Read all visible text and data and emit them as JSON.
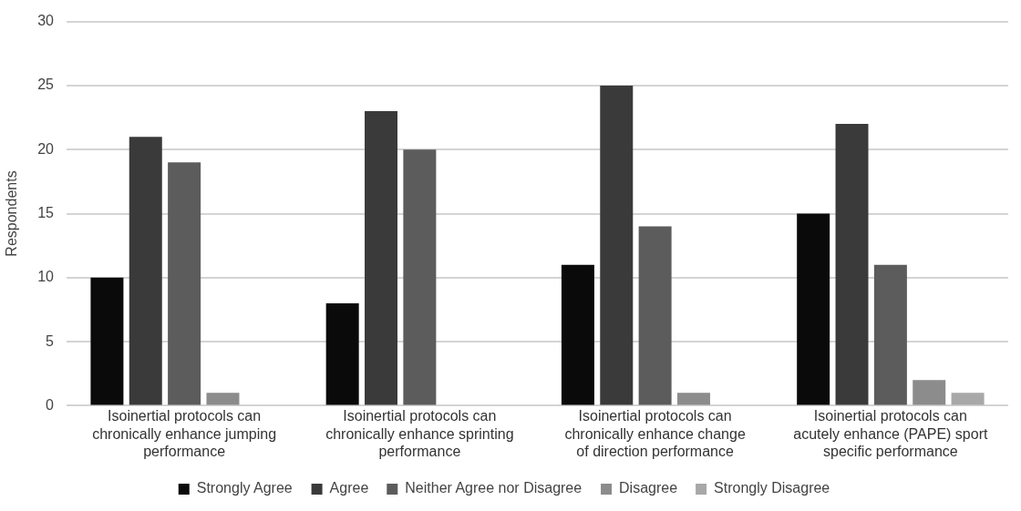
{
  "chart_data": {
    "type": "bar",
    "ylabel": "Respondents",
    "categories": [
      "Isoinertial protocols can chronically enhance jumping performance",
      "Isoinertial protocols can chronically enhance sprinting performance",
      "Isoinertial protocols can chronically enhance change of direction performance",
      "Isoinertial protocols can acutely enhance (PAPE) sport specific performance"
    ],
    "series": [
      {
        "name": "Strongly Agree",
        "color": "#0a0a0a",
        "values": [
          10,
          8,
          11,
          15
        ]
      },
      {
        "name": "Agree",
        "color": "#3a3a3a",
        "values": [
          21,
          23,
          25,
          22
        ]
      },
      {
        "name": "Neither Agree nor Disagree",
        "color": "#5c5c5c",
        "values": [
          19,
          20,
          14,
          11
        ]
      },
      {
        "name": "Disagree",
        "color": "#8c8c8c",
        "values": [
          1,
          0,
          1,
          2
        ]
      },
      {
        "name": "Strongly Disagree",
        "color": "#a8a8a8",
        "values": [
          0,
          0,
          0,
          1
        ]
      }
    ],
    "ylim": [
      0,
      30
    ],
    "yticks": [
      0,
      5,
      10,
      15,
      20,
      25,
      30
    ],
    "grid": "y",
    "legend": "bottom"
  }
}
